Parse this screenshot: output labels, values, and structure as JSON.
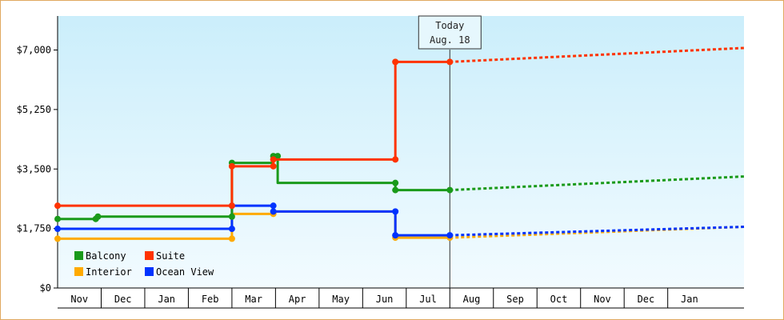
{
  "chart_data": {
    "type": "line",
    "title": "",
    "xlabel": "",
    "ylabel": "",
    "ylim": [
      0,
      8000
    ],
    "y_ticks": [
      {
        "value": 0,
        "label": "$0"
      },
      {
        "value": 1750,
        "label": "$1,750"
      },
      {
        "value": 3500,
        "label": "$3,500"
      },
      {
        "value": 5250,
        "label": "$5,250"
      },
      {
        "value": 7000,
        "label": "$7,000"
      }
    ],
    "months": [
      "Nov",
      "Dec",
      "Jan",
      "Feb",
      "Mar",
      "Apr",
      "May",
      "Jun",
      "Jul",
      "Aug",
      "Sep",
      "Oct",
      "Nov",
      "Dec",
      "Jan"
    ],
    "today": {
      "line1": "Today",
      "line2": "Aug. 18",
      "x": 9.55
    },
    "grid": false,
    "legend": "bottom-left",
    "series": [
      {
        "name": "Balcony",
        "color": "#1a9a1a",
        "points": [
          [
            0,
            2030
          ],
          [
            1.75,
            2030
          ],
          [
            1.75,
            2100
          ],
          [
            8.0,
            2100
          ],
          [
            8.0,
            3680
          ],
          [
            9.9,
            3680
          ],
          [
            9.9,
            3880
          ],
          [
            10.1,
            3880
          ],
          [
            10.1,
            3090
          ],
          [
            15.5,
            3090
          ],
          [
            15.5,
            2880
          ],
          [
            18.0,
            2880
          ]
        ],
        "markers": [
          [
            0,
            2030
          ],
          [
            1.75,
            2030
          ],
          [
            1.85,
            2100
          ],
          [
            8.0,
            2100
          ],
          [
            8.0,
            3680
          ],
          [
            9.9,
            3880
          ],
          [
            10.1,
            3880
          ],
          [
            15.5,
            3090
          ],
          [
            15.5,
            2880
          ],
          [
            18.0,
            2880
          ]
        ],
        "forecast": [
          [
            18.0,
            2880
          ],
          [
            31.5,
            3280
          ]
        ]
      },
      {
        "name": "Suite",
        "color": "#ff3300",
        "points": [
          [
            0,
            2420
          ],
          [
            8.0,
            2420
          ],
          [
            8.0,
            3580
          ],
          [
            9.9,
            3580
          ],
          [
            9.9,
            3780
          ],
          [
            15.5,
            3780
          ],
          [
            15.5,
            6650
          ],
          [
            18.0,
            6650
          ]
        ],
        "markers": [
          [
            0,
            2420
          ],
          [
            8.0,
            2420
          ],
          [
            8.0,
            3580
          ],
          [
            9.9,
            3580
          ],
          [
            9.9,
            3780
          ],
          [
            15.5,
            3780
          ],
          [
            15.5,
            6650
          ],
          [
            18.0,
            6650
          ]
        ],
        "forecast": [
          [
            18.0,
            6650
          ],
          [
            31.5,
            7060
          ]
        ]
      },
      {
        "name": "Interior",
        "color": "#ffaa00",
        "points": [
          [
            0,
            1450
          ],
          [
            8.0,
            1450
          ],
          [
            8.0,
            2180
          ],
          [
            9.9,
            2180
          ],
          [
            9.9,
            2250
          ],
          [
            15.5,
            2250
          ],
          [
            15.5,
            1480
          ],
          [
            18.0,
            1480
          ]
        ],
        "markers": [
          [
            0,
            1450
          ],
          [
            8.0,
            1450
          ],
          [
            9.9,
            2180
          ],
          [
            15.5,
            1480
          ],
          [
            18.0,
            1480
          ]
        ],
        "forecast": [
          [
            18.0,
            1480
          ],
          [
            31.5,
            1800
          ]
        ]
      },
      {
        "name": "Ocean View",
        "color": "#0033ff",
        "points": [
          [
            0,
            1740
          ],
          [
            8.0,
            1740
          ],
          [
            8.0,
            2420
          ],
          [
            9.9,
            2420
          ],
          [
            9.9,
            2250
          ],
          [
            15.5,
            2250
          ],
          [
            15.5,
            1550
          ],
          [
            18.0,
            1550
          ]
        ],
        "markers": [
          [
            0,
            1740
          ],
          [
            8.0,
            1740
          ],
          [
            8.0,
            2420
          ],
          [
            9.9,
            2420
          ],
          [
            9.9,
            2250
          ],
          [
            15.5,
            2250
          ],
          [
            15.5,
            1550
          ],
          [
            18.0,
            1550
          ]
        ],
        "forecast": [
          [
            18.0,
            1550
          ],
          [
            31.5,
            1800
          ]
        ]
      }
    ]
  }
}
